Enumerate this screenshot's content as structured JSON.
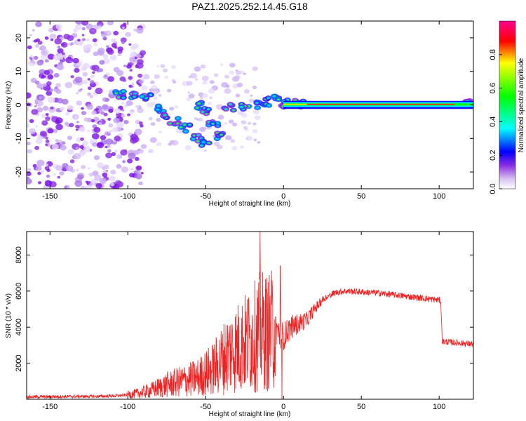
{
  "title": "PAZ1.2025.252.14.45.G18",
  "chart_data": [
    {
      "type": "heatmap",
      "xlabel": "Height of straight line (km)",
      "ylabel": "Frequency (Hz)",
      "xlim": [
        -165,
        122
      ],
      "ylim": [
        -25,
        25
      ],
      "x_ticks": [
        "-150",
        "-100",
        "-50",
        "0",
        "50",
        "100"
      ],
      "y_ticks": [
        "-20",
        "-10",
        "0",
        "10",
        "20"
      ],
      "colorbar": {
        "label": "Normalized spectral amplitude",
        "range": [
          0,
          1
        ],
        "ticks": [
          "0.0",
          "0.2",
          "0.4",
          "0.6",
          "0.8"
        ]
      },
      "ridge": [
        {
          "x": -105,
          "f": 3
        },
        {
          "x": -95,
          "f": 3
        },
        {
          "x": -88,
          "f": 2
        },
        {
          "x": -82,
          "f": -1
        },
        {
          "x": -76,
          "f": -3
        },
        {
          "x": -70,
          "f": -5
        },
        {
          "x": -63,
          "f": -7
        },
        {
          "x": -55,
          "f": -10
        },
        {
          "x": -50,
          "f": -12
        },
        {
          "x": -55,
          "f": 0
        },
        {
          "x": -50,
          "f": -2
        },
        {
          "x": -45,
          "f": -5
        },
        {
          "x": -40,
          "f": -9
        },
        {
          "x": -35,
          "f": -1
        },
        {
          "x": -25,
          "f": -1
        },
        {
          "x": -15,
          "f": 0
        },
        {
          "x": -10,
          "f": 1
        },
        {
          "x": -5,
          "f": 2
        },
        {
          "x": 0,
          "f": 0.5
        },
        {
          "x": 10,
          "f": 0.3
        },
        {
          "x": 120,
          "f": 0.2
        }
      ]
    },
    {
      "type": "line",
      "xlabel": "Height of straight line (km)",
      "ylabel": "SNR (10 * v/v)",
      "xlim": [
        -165,
        122
      ],
      "ylim": [
        0,
        9300
      ],
      "x_ticks": [
        "-150",
        "-100",
        "-50",
        "0",
        "50",
        "100"
      ],
      "y_ticks": [
        "2000",
        "4000",
        "6000",
        "8000"
      ],
      "color": "#ee2222",
      "series": [
        {
          "name": "SNR",
          "points": [
            [
              -165,
              130
            ],
            [
              -140,
              150
            ],
            [
              -120,
              160
            ],
            [
              -105,
              200
            ],
            [
              -95,
              300
            ],
            [
              -85,
              500
            ],
            [
              -75,
              800
            ],
            [
              -65,
              1000
            ],
            [
              -55,
              1200
            ],
            [
              -45,
              1700
            ],
            [
              -35,
              2600
            ],
            [
              -25,
              3100
            ],
            [
              -18,
              3500
            ],
            [
              -15,
              3800
            ],
            [
              -10,
              3700
            ],
            [
              -5,
              3900
            ],
            [
              0,
              3500
            ],
            [
              5,
              4000
            ],
            [
              10,
              4200
            ],
            [
              15,
              4400
            ],
            [
              20,
              5000
            ],
            [
              25,
              5500
            ],
            [
              30,
              5800
            ],
            [
              35,
              5950
            ],
            [
              40,
              6000
            ],
            [
              50,
              5950
            ],
            [
              60,
              5900
            ],
            [
              70,
              5800
            ],
            [
              80,
              5700
            ],
            [
              90,
              5600
            ],
            [
              100,
              5500
            ],
            [
              101,
              5450
            ],
            [
              102,
              3200
            ],
            [
              110,
              3150
            ],
            [
              122,
              3050
            ]
          ]
        }
      ],
      "spikes": [
        {
          "x": -15,
          "value": 9300
        },
        {
          "x": -2,
          "value": 7400
        },
        {
          "x": -1,
          "value": 0
        }
      ]
    }
  ]
}
